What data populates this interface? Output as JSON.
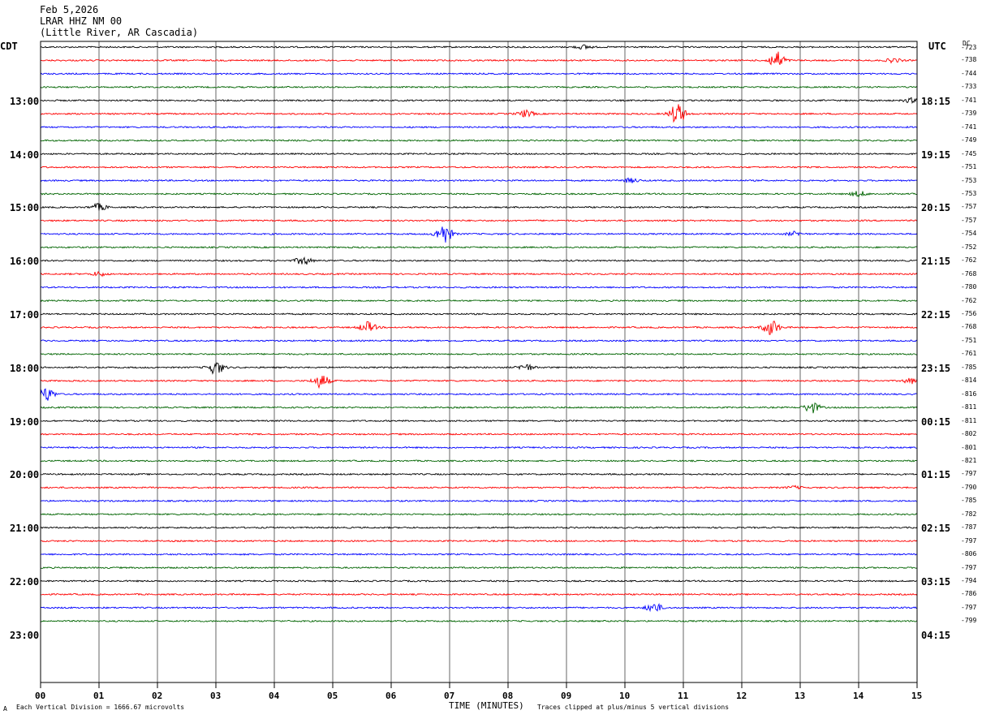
{
  "header": {
    "date": "Feb 5,2026",
    "station": "LRAR HHZ NM 00",
    "location": "(Little River, AR Cascadia)"
  },
  "left_zone_label": "CDT",
  "right_zone_label": "UTC",
  "dc_label_top": "DC",
  "footer": {
    "scale_note": "Each Vertical Division = 1666.67 microvolts",
    "xlabel": "TIME (MINUTES)",
    "clip_note": "Traces clipped at plus/minus 5 vertical divisions",
    "corner_mark": "A"
  },
  "chart_data": {
    "type": "line",
    "title": "LRAR HHZ NM 00",
    "xlabel": "TIME (MINUTES)",
    "xlim": [
      0,
      15
    ],
    "x_ticks": [
      "00",
      "01",
      "02",
      "03",
      "04",
      "05",
      "06",
      "07",
      "08",
      "09",
      "10",
      "11",
      "12",
      "13",
      "14",
      "15"
    ],
    "trace_colors": [
      "#000000",
      "#ff0000",
      "#0000ff",
      "#006400"
    ],
    "left_hour_labels": [
      "13:00",
      "14:00",
      "15:00",
      "16:00",
      "17:00",
      "18:00",
      "19:00",
      "20:00",
      "21:00",
      "22:00",
      "23:00"
    ],
    "right_hour_labels": [
      "18:15",
      "19:15",
      "20:15",
      "21:15",
      "22:15",
      "23:15",
      "00:15",
      "01:15",
      "02:15",
      "03:15",
      "04:15"
    ],
    "dc_offsets": [
      -723,
      -738,
      -744,
      -733,
      -741,
      -739,
      -741,
      -749,
      -745,
      -751,
      -753,
      -753,
      -757,
      -757,
      -754,
      -752,
      -762,
      -768,
      -780,
      -762,
      -756,
      -768,
      -751,
      -761,
      -785,
      -814,
      -816,
      -811,
      -811,
      -802,
      -801,
      -821,
      -797,
      -790,
      -785,
      -782,
      -787,
      -797,
      -806,
      -797,
      -794,
      -786,
      -797,
      -799
    ],
    "events": [
      {
        "trace": 0,
        "minute": 9.3,
        "amplitude": 0.3
      },
      {
        "trace": 1,
        "minute": 12.6,
        "amplitude": 1.3
      },
      {
        "trace": 1,
        "minute": 14.6,
        "amplitude": 0.3
      },
      {
        "trace": 4,
        "minute": 14.9,
        "amplitude": 0.3
      },
      {
        "trace": 5,
        "minute": 8.3,
        "amplitude": 0.5
      },
      {
        "trace": 5,
        "minute": 10.9,
        "amplitude": 1.5
      },
      {
        "trace": 10,
        "minute": 10.1,
        "amplitude": 0.3
      },
      {
        "trace": 11,
        "minute": 14.0,
        "amplitude": 0.4
      },
      {
        "trace": 12,
        "minute": 1.0,
        "amplitude": 0.5
      },
      {
        "trace": 14,
        "minute": 6.9,
        "amplitude": 1.5
      },
      {
        "trace": 14,
        "minute": 12.9,
        "amplitude": 0.3
      },
      {
        "trace": 16,
        "minute": 4.5,
        "amplitude": 0.6
      },
      {
        "trace": 17,
        "minute": 1.0,
        "amplitude": 0.3
      },
      {
        "trace": 21,
        "minute": 5.6,
        "amplitude": 0.8
      },
      {
        "trace": 21,
        "minute": 12.5,
        "amplitude": 1.2
      },
      {
        "trace": 24,
        "minute": 3.0,
        "amplitude": 1.0
      },
      {
        "trace": 24,
        "minute": 8.3,
        "amplitude": 0.5
      },
      {
        "trace": 25,
        "minute": 4.8,
        "amplitude": 1.0
      },
      {
        "trace": 25,
        "minute": 14.9,
        "amplitude": 0.4
      },
      {
        "trace": 26,
        "minute": 0.1,
        "amplitude": 1.0
      },
      {
        "trace": 27,
        "minute": 13.2,
        "amplitude": 0.8
      },
      {
        "trace": 33,
        "minute": 12.9,
        "amplitude": 0.2
      },
      {
        "trace": 42,
        "minute": 10.5,
        "amplitude": 0.7
      }
    ]
  }
}
